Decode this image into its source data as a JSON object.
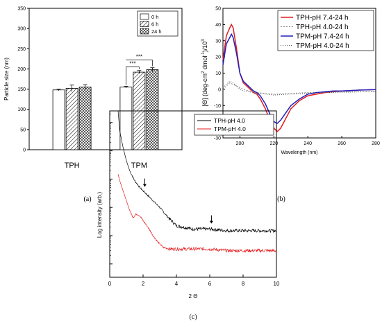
{
  "captions": {
    "a": "(a)",
    "b": "(b)",
    "c": "(c)"
  },
  "chart_data": [
    {
      "type": "bar",
      "panel": "a",
      "ylabel": "Particle size (nm)",
      "xlabel": "",
      "ylim": [
        0,
        350
      ],
      "yticks": [
        0,
        50,
        100,
        150,
        200,
        250,
        300,
        350
      ],
      "categories": [
        "TPH",
        "TPM"
      ],
      "series": [
        {
          "name": "0 h",
          "values": [
            148,
            155
          ],
          "errors": [
            2,
            2
          ],
          "pattern": "white"
        },
        {
          "name": "6 h",
          "values": [
            152,
            192
          ],
          "errors": [
            8,
            4
          ],
          "pattern": "hatch"
        },
        {
          "name": "24 h",
          "values": [
            155,
            198
          ],
          "errors": [
            6,
            5
          ],
          "pattern": "cross"
        }
      ],
      "annotations": [
        {
          "text": "***"
        },
        {
          "text": "***"
        }
      ],
      "legend_position": "top-right"
    },
    {
      "type": "line",
      "panel": "b",
      "xlabel": "Wavelength (nm)",
      "ylabel_parts": [
        "[Θ] (deg-cm",
        "2",
        " dmol",
        "-1",
        ")/10",
        "3"
      ],
      "xlim": [
        190,
        280
      ],
      "ylim": [
        -30,
        50
      ],
      "xticks": [
        200,
        220,
        240,
        260,
        280
      ],
      "yticks": [
        -30,
        -20,
        -10,
        0,
        10,
        20,
        30,
        40,
        50
      ],
      "legend_position": "top-right",
      "series": [
        {
          "name": "TPH-pH 7.4-24 h",
          "color": "#e41a1c",
          "dash": "",
          "x": [
            190,
            192,
            194,
            195,
            196,
            198,
            200,
            202,
            205,
            208,
            210,
            212,
            215,
            218,
            220,
            222,
            224,
            226,
            228,
            230,
            235,
            240,
            245,
            250,
            255,
            260,
            265,
            270,
            275,
            280
          ],
          "y": [
            18,
            33,
            38,
            40,
            38,
            25,
            10,
            4,
            1,
            -2,
            -3,
            -6,
            -12,
            -20,
            -24,
            -26,
            -24,
            -20,
            -16,
            -12,
            -7,
            -4,
            -3,
            -2,
            -1.5,
            -1,
            -0.8,
            -0.5,
            -0.3,
            -0.2
          ]
        },
        {
          "name": "TPH-pH 4.0-24 h",
          "color": "#888888",
          "dash": "2,2",
          "x": [
            190,
            192,
            194,
            196,
            198,
            200,
            202,
            205,
            208,
            210,
            215,
            220,
            225,
            230,
            240,
            250,
            260,
            270,
            280
          ],
          "y": [
            0,
            2,
            4,
            3,
            2,
            1,
            0,
            -1,
            -1.5,
            -2,
            -2.5,
            -3,
            -2.8,
            -2.5,
            -2,
            -1.8,
            -1.6,
            -1.5,
            -1.5
          ]
        },
        {
          "name": "TPM-pH 7.4-24 h",
          "color": "#1f1fbf",
          "dash": "",
          "x": [
            190,
            192,
            194,
            195,
            196,
            198,
            200,
            202,
            205,
            208,
            210,
            212,
            215,
            218,
            220,
            222,
            224,
            226,
            228,
            230,
            235,
            240,
            245,
            250,
            255,
            260,
            265,
            270,
            275,
            280
          ],
          "y": [
            15,
            28,
            32,
            34,
            32,
            22,
            10,
            5,
            2,
            -1,
            -2,
            -4,
            -9,
            -16,
            -20,
            -21,
            -19,
            -16,
            -13,
            -10,
            -6,
            -3,
            -2,
            -1.5,
            -1,
            -1,
            -0.8,
            -0.5,
            -0.3,
            -0.2
          ]
        },
        {
          "name": "TPM-pH 4.0-24 h",
          "color": "#555555",
          "dash": "1,2",
          "x": [
            190,
            192,
            194,
            196,
            198,
            200,
            202,
            205,
            208,
            210,
            215,
            220,
            225,
            230,
            240,
            250,
            260,
            270,
            280
          ],
          "y": [
            1,
            3,
            5,
            4,
            2,
            0,
            -1,
            -1.5,
            -2,
            -2.3,
            -3,
            -3.5,
            -3.2,
            -3,
            -2.5,
            -2,
            -1.8,
            -1.6,
            -1.5
          ]
        }
      ]
    },
    {
      "type": "line",
      "panel": "c",
      "xlabel": "2 Θ",
      "ylabel": "Log intensity (arb.)",
      "xlim": [
        0,
        10
      ],
      "xticks": [
        0,
        2,
        4,
        6,
        8,
        10
      ],
      "legend_position": "top-right",
      "arrows_at_x": [
        2.1,
        6.1
      ],
      "series": [
        {
          "name": "TPH-pH 4.0",
          "color": "#000000",
          "x": [
            0.5,
            0.6,
            0.8,
            1.0,
            1.2,
            1.5,
            1.8,
            2.0,
            2.2,
            2.5,
            3.0,
            3.5,
            4.0,
            4.5,
            5.0,
            6.0,
            7.0,
            8.0,
            9.0,
            10.0
          ],
          "y": [
            1.0,
            0.88,
            0.78,
            0.7,
            0.64,
            0.58,
            0.54,
            0.52,
            0.5,
            0.47,
            0.42,
            0.36,
            0.31,
            0.3,
            0.29,
            0.29,
            0.28,
            0.28,
            0.28,
            0.28
          ]
        },
        {
          "name": "TPM-pH 4.0",
          "color": "#e41a1c",
          "x": [
            0.5,
            0.6,
            0.8,
            1.0,
            1.2,
            1.4,
            1.6,
            1.8,
            2.0,
            2.3,
            2.6,
            2.9,
            3.2,
            3.6,
            4.0,
            5.0,
            6.0,
            7.0,
            8.0,
            9.0,
            10.0
          ],
          "y": [
            0.62,
            0.58,
            0.52,
            0.46,
            0.4,
            0.36,
            0.38,
            0.37,
            0.34,
            0.3,
            0.25,
            0.21,
            0.18,
            0.17,
            0.17,
            0.17,
            0.17,
            0.16,
            0.16,
            0.16,
            0.16
          ]
        }
      ]
    }
  ]
}
